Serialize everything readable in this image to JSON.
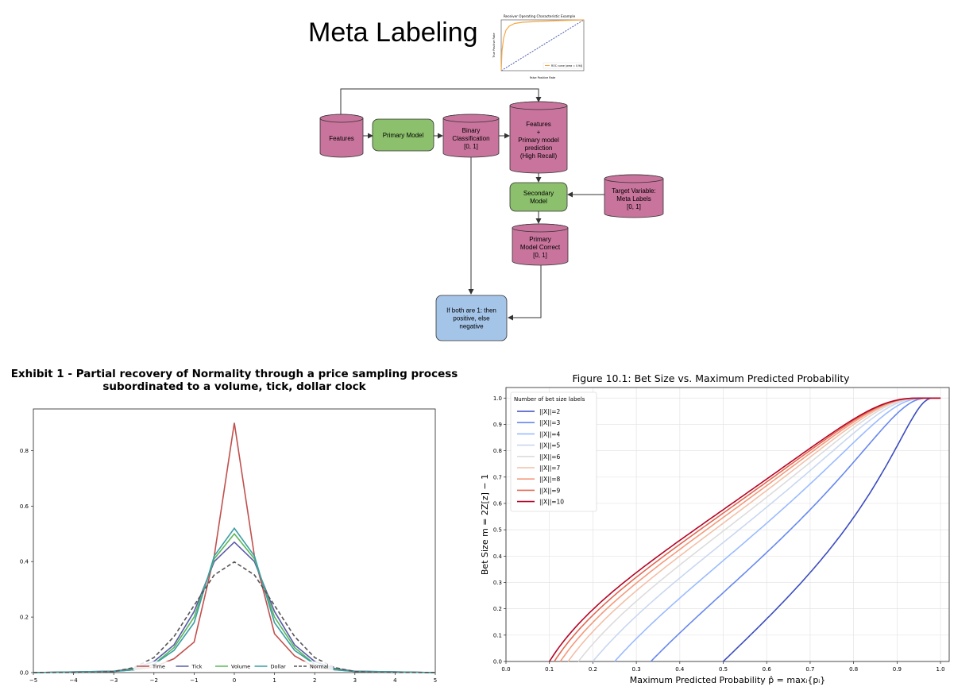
{
  "title": "Meta Labeling",
  "roc_thumbnail": {
    "title": "Receiver Operating Characteristic Example",
    "xlabel": "False Positive Rate",
    "ylabel": "True Positive Rate",
    "legend": "ROC curve (area = 0.94)"
  },
  "flowchart": {
    "nodes": [
      {
        "id": "features",
        "kind": "cylinder",
        "color": "#c8749c",
        "lines": [
          "Features"
        ]
      },
      {
        "id": "primary_model",
        "kind": "box",
        "color": "#8cc06c",
        "lines": [
          "Primary Model"
        ]
      },
      {
        "id": "binary_classification",
        "kind": "cylinder",
        "color": "#c8749c",
        "lines": [
          "Binary",
          "Classification",
          "[0, 1]"
        ]
      },
      {
        "id": "features_primary_prediction",
        "kind": "cylinder",
        "color": "#c8749c",
        "lines": [
          "Features",
          "+",
          "Primary model",
          "prediction",
          "(High Recall)"
        ]
      },
      {
        "id": "secondary_model",
        "kind": "box",
        "color": "#8cc06c",
        "lines": [
          "Secondary",
          "Model"
        ]
      },
      {
        "id": "target_variable",
        "kind": "cylinder",
        "color": "#c8749c",
        "lines": [
          "Target Variable:",
          "Meta Labels",
          "[0, 1]"
        ]
      },
      {
        "id": "primary_model_correct",
        "kind": "cylinder",
        "color": "#c8749c",
        "lines": [
          "Primary",
          "Model Correct",
          "[0, 1]"
        ]
      },
      {
        "id": "final_decision",
        "kind": "box",
        "color": "#a4c4e8",
        "lines": [
          "If both are 1: then",
          "positive, else",
          "negative"
        ]
      }
    ]
  },
  "exhibit": {
    "title_line1": "Exhibit 1 - Partial recovery of Normality through a price sampling process",
    "title_line2": "subordinated to a volume, tick, dollar clock"
  },
  "figure10": {
    "title": "Figure 10.1: Bet Size vs. Maximum Predicted Probability",
    "xlabel": "Maximum Predicted Probability p̂ = maxᵢ{pᵢ}",
    "ylabel": "Bet Size m = 2Z[z] − 1",
    "legend_title": "Number of bet size labels"
  },
  "chart_data": [
    {
      "type": "line",
      "title": "Exhibit 1 - Partial recovery of Normality through a price sampling process subordinated to a volume, tick, dollar clock",
      "xlim": [
        -5,
        5
      ],
      "ylim": [
        0,
        0.95
      ],
      "x_ticks": [
        -5,
        -4,
        -3,
        -2,
        -1,
        0,
        1,
        2,
        3,
        4,
        5
      ],
      "y_ticks": [
        0.0,
        0.2,
        0.4,
        0.6,
        0.8
      ],
      "legend_position": "bottom-center",
      "series": [
        {
          "name": "Time",
          "color": "#c0504d",
          "dashed": false,
          "points": [
            [
              -5,
              0
            ],
            [
              -3,
              0.005
            ],
            [
              -2.5,
              0.01
            ],
            [
              -2,
              0.02
            ],
            [
              -1.5,
              0.05
            ],
            [
              -1,
              0.11
            ],
            [
              -0.5,
              0.42
            ],
            [
              0,
              0.9
            ],
            [
              0.5,
              0.42
            ],
            [
              1,
              0.14
            ],
            [
              1.5,
              0.06
            ],
            [
              2,
              0.02
            ],
            [
              2.5,
              0.01
            ],
            [
              3,
              0.005
            ],
            [
              5,
              0
            ]
          ]
        },
        {
          "name": "Tick",
          "color": "#5a5aa8",
          "dashed": false,
          "points": [
            [
              -5,
              0
            ],
            [
              -3,
              0.005
            ],
            [
              -2.5,
              0.015
            ],
            [
              -2,
              0.04
            ],
            [
              -1.5,
              0.1
            ],
            [
              -1,
              0.22
            ],
            [
              -0.5,
              0.4
            ],
            [
              0,
              0.47
            ],
            [
              0.5,
              0.4
            ],
            [
              1,
              0.22
            ],
            [
              1.5,
              0.1
            ],
            [
              2,
              0.04
            ],
            [
              2.5,
              0.015
            ],
            [
              3,
              0.005
            ],
            [
              5,
              0
            ]
          ]
        },
        {
          "name": "Volume",
          "color": "#5cb85c",
          "dashed": false,
          "points": [
            [
              -5,
              0
            ],
            [
              -3,
              0.004
            ],
            [
              -2.5,
              0.012
            ],
            [
              -2,
              0.03
            ],
            [
              -1.5,
              0.09
            ],
            [
              -1,
              0.2
            ],
            [
              -0.5,
              0.41
            ],
            [
              0,
              0.5
            ],
            [
              0.5,
              0.41
            ],
            [
              1,
              0.2
            ],
            [
              1.5,
              0.09
            ],
            [
              2,
              0.03
            ],
            [
              2.5,
              0.012
            ],
            [
              3,
              0.004
            ],
            [
              5,
              0
            ]
          ]
        },
        {
          "name": "Dollar",
          "color": "#3a9ea5",
          "dashed": false,
          "points": [
            [
              -5,
              0
            ],
            [
              -3,
              0.004
            ],
            [
              -2.5,
              0.01
            ],
            [
              -2,
              0.03
            ],
            [
              -1.5,
              0.08
            ],
            [
              -1,
              0.18
            ],
            [
              -0.5,
              0.42
            ],
            [
              0,
              0.52
            ],
            [
              0.5,
              0.42
            ],
            [
              1,
              0.18
            ],
            [
              1.5,
              0.08
            ],
            [
              2,
              0.03
            ],
            [
              2.5,
              0.01
            ],
            [
              3,
              0.004
            ],
            [
              5,
              0
            ]
          ]
        },
        {
          "name": "Normal",
          "color": "#555555",
          "dashed": true,
          "points": [
            [
              -5,
              0
            ],
            [
              -3.5,
              0.001
            ],
            [
              -3,
              0.004
            ],
            [
              -2.5,
              0.018
            ],
            [
              -2,
              0.054
            ],
            [
              -1.5,
              0.13
            ],
            [
              -1,
              0.242
            ],
            [
              -0.5,
              0.352
            ],
            [
              0,
              0.399
            ],
            [
              0.5,
              0.352
            ],
            [
              1,
              0.242
            ],
            [
              1.5,
              0.13
            ],
            [
              2,
              0.054
            ],
            [
              2.5,
              0.018
            ],
            [
              3,
              0.004
            ],
            [
              3.5,
              0.001
            ],
            [
              5,
              0
            ]
          ]
        }
      ]
    },
    {
      "type": "line",
      "title": "Figure 10.1: Bet Size vs. Maximum Predicted Probability",
      "xlabel": "Maximum Predicted Probability p̂ = maxᵢ{pᵢ}",
      "ylabel": "Bet Size m = 2Z[z] − 1",
      "xlim": [
        0,
        1.02
      ],
      "ylim": [
        0,
        1.04
      ],
      "x_ticks": [
        0.0,
        0.1,
        0.2,
        0.3,
        0.4,
        0.5,
        0.6,
        0.7,
        0.8,
        0.9,
        1.0
      ],
      "y_ticks": [
        0.0,
        0.1,
        0.2,
        0.3,
        0.4,
        0.5,
        0.6,
        0.7,
        0.8,
        0.9,
        1.0
      ],
      "grid": true,
      "legend_position": "top-left",
      "series": [
        {
          "name": "||X||=2",
          "color": "#3b4cc0",
          "n": 2
        },
        {
          "name": "||X||=3",
          "color": "#6788ee",
          "n": 3
        },
        {
          "name": "||X||=4",
          "color": "#9abbff",
          "n": 4
        },
        {
          "name": "||X||=5",
          "color": "#c9d7f0",
          "n": 5
        },
        {
          "name": "||X||=6",
          "color": "#dddcdc",
          "n": 6
        },
        {
          "name": "||X||=7",
          "color": "#f2c0a8",
          "n": 7
        },
        {
          "name": "||X||=8",
          "color": "#f49a7b",
          "n": 8
        },
        {
          "name": "||X||=9",
          "color": "#e26952",
          "n": 9
        },
        {
          "name": "||X||=10",
          "color": "#b40426",
          "n": 10
        }
      ]
    }
  ]
}
